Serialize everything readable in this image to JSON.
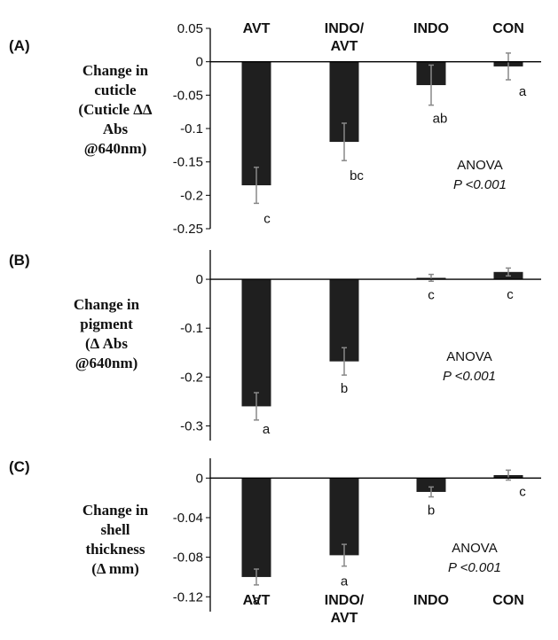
{
  "chart_data": [
    {
      "type": "bar",
      "panel_label": "(A)",
      "ylabel_lines": [
        "Change in",
        "cuticle",
        "(Cuticle ΔΔ",
        "Abs",
        "@640nm)"
      ],
      "categories": [
        "AVT",
        "INDO/AVT",
        "INDO",
        "CON"
      ],
      "category_label_lines": [
        [
          "AVT"
        ],
        [
          "INDO/",
          "AVT"
        ],
        [
          "INDO"
        ],
        [
          "CON"
        ]
      ],
      "values": [
        -0.185,
        -0.12,
        -0.035,
        -0.007
      ],
      "errors": [
        0.027,
        0.028,
        0.03,
        0.02
      ],
      "significance": [
        "c",
        "bc",
        "ab",
        "a"
      ],
      "ylim": [
        -0.25,
        0.05
      ],
      "yticks": [
        0.05,
        0,
        -0.05,
        -0.1,
        -0.15,
        -0.2,
        -0.25
      ],
      "ytick_labels": [
        "0.05",
        "0",
        "-0.05",
        "-0.1",
        "-0.15",
        "-0.2",
        "-0.25"
      ],
      "annotation": {
        "line1": "ANOVA",
        "line2": "P <0.001"
      }
    },
    {
      "type": "bar",
      "panel_label": "(B)",
      "ylabel_lines": [
        "Change in",
        "pigment",
        "(Δ  Abs",
        "@640nm)"
      ],
      "categories": [
        "AVT",
        "INDO/AVT",
        "INDO",
        "CON"
      ],
      "values": [
        -0.26,
        -0.168,
        0.003,
        0.015
      ],
      "errors": [
        0.028,
        0.028,
        0.007,
        0.008
      ],
      "significance": [
        "a",
        "b",
        "c",
        "c"
      ],
      "ylim": [
        -0.33,
        0.06
      ],
      "yticks": [
        0,
        -0.1,
        -0.2,
        -0.3
      ],
      "ytick_labels": [
        "0",
        "-0.1",
        "-0.2",
        "-0.3"
      ],
      "annotation": {
        "line1": "ANOVA",
        "line2": "P <0.001"
      }
    },
    {
      "type": "bar",
      "panel_label": "(C)",
      "ylabel_lines": [
        "Change in",
        "shell",
        "thickness",
        "(Δ mm)"
      ],
      "categories": [
        "AVT",
        "INDO/AVT",
        "INDO",
        "CON"
      ],
      "category_label_lines": [
        [
          "AVT"
        ],
        [
          "INDO/",
          "AVT"
        ],
        [
          "INDO"
        ],
        [
          "CON"
        ]
      ],
      "values": [
        -0.1,
        -0.078,
        -0.014,
        0.003
      ],
      "errors": [
        0.008,
        0.011,
        0.005,
        0.005
      ],
      "significance": [
        "a",
        "a",
        "b",
        "c"
      ],
      "ylim": [
        -0.135,
        0.02
      ],
      "yticks": [
        0,
        -0.04,
        -0.08,
        -0.12
      ],
      "ytick_labels": [
        "0",
        "-0.04",
        "-0.08",
        "-0.12"
      ],
      "annotation": {
        "line1": "ANOVA",
        "line2": "P <0.001"
      }
    }
  ]
}
